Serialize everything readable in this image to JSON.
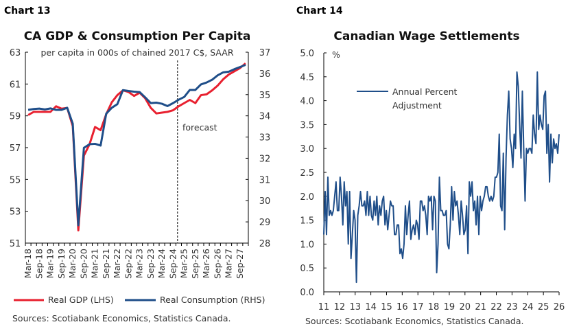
{
  "chart_data": [
    {
      "type": "line",
      "label": "Chart 13",
      "title": "CA GDP & Consumption Per Capita",
      "subtitle": "per capita in 000s of chained 2017 C$, SAAR",
      "annotation": "forecast",
      "forecast_start": "Dec-24",
      "x_tick_labels": [
        "Mar-18",
        "Sep-18",
        "Mar-19",
        "Sep-19",
        "Mar-20",
        "Sep-20",
        "Mar-21",
        "Sep-21",
        "Mar-22",
        "Sep-22",
        "Mar-23",
        "Sep-23",
        "Mar-24",
        "Sep-24",
        "Mar-25",
        "Sep-25",
        "Mar-26",
        "Sep-26",
        "Mar-27",
        "Sep-27"
      ],
      "x_start": "Mar-18",
      "frequency": "quarterly",
      "y_left": {
        "ylim": [
          51,
          63
        ],
        "ticks": [
          51,
          53,
          55,
          57,
          59,
          61,
          63
        ]
      },
      "y_right": {
        "ylim": [
          28,
          37
        ],
        "ticks": [
          28,
          29,
          30,
          31,
          32,
          33,
          34,
          35,
          36,
          37
        ]
      },
      "grid": false,
      "legend_placement": "bottom",
      "series": [
        {
          "name": "Real GDP (LHS)",
          "axis": "left",
          "color": "#e8202f",
          "values": [
            59.05,
            59.25,
            59.25,
            59.25,
            59.25,
            59.6,
            59.45,
            59.5,
            58.35,
            51.8,
            56.5,
            57.2,
            58.3,
            58.1,
            59.1,
            59.85,
            60.3,
            60.6,
            60.5,
            60.25,
            60.45,
            60.1,
            59.5,
            59.15,
            59.2,
            59.25,
            59.35,
            59.6,
            59.8,
            60.0,
            59.8,
            60.3,
            60.35,
            60.6,
            60.9,
            61.3,
            61.6,
            61.8,
            62.0,
            62.3
          ]
        },
        {
          "name": "Real Consumption (RHS)",
          "axis": "right",
          "color": "#1f4e89",
          "values": [
            34.28,
            34.32,
            34.34,
            34.3,
            34.35,
            34.28,
            34.28,
            34.38,
            33.63,
            28.84,
            32.49,
            32.66,
            32.68,
            32.6,
            34.1,
            34.38,
            34.55,
            35.21,
            35.17,
            35.14,
            35.12,
            34.87,
            34.6,
            34.62,
            34.57,
            34.46,
            34.6,
            34.76,
            34.89,
            35.22,
            35.22,
            35.48,
            35.57,
            35.7,
            35.91,
            36.05,
            36.08,
            36.2,
            36.3,
            36.4
          ]
        }
      ],
      "source": "Sources: Scotiabank Economics, Statistics Canada."
    },
    {
      "type": "line",
      "label": "Chart 14",
      "title": "Canadian Wage Settlements",
      "ylabel": "%",
      "ylim": [
        0,
        5
      ],
      "y_ticks": [
        "0.0",
        "0.5",
        "1.0",
        "1.5",
        "2.0",
        "2.5",
        "3.0",
        "3.5",
        "4.0",
        "4.5",
        "5.0"
      ],
      "x_tick_labels": [
        "11",
        "12",
        "13",
        "14",
        "15",
        "16",
        "17",
        "18",
        "19",
        "20",
        "21",
        "22",
        "23",
        "24",
        "25",
        "26"
      ],
      "frequency": "monthly",
      "grid": false,
      "legend_placement": "top-left",
      "series": [
        {
          "name": "Annual Percent Adjustment",
          "name_lines": [
            "Annual Percent",
            "Adjustment"
          ],
          "color": "#1f4e89",
          "values": [
            1.2,
            2.1,
            1.2,
            2.4,
            1.6,
            1.7,
            1.6,
            1.7,
            2.0,
            2.3,
            1.7,
            1.7,
            2.4,
            2.0,
            1.4,
            2.3,
            1.8,
            2.1,
            1.0,
            2.1,
            0.7,
            1.2,
            1.7,
            1.5,
            0.2,
            1.6,
            1.8,
            2.1,
            1.8,
            1.8,
            1.9,
            1.6,
            2.1,
            1.6,
            2.0,
            1.6,
            1.5,
            1.9,
            1.6,
            2.0,
            1.4,
            1.8,
            1.6,
            1.9,
            2.0,
            1.4,
            1.7,
            1.3,
            1.6,
            1.9,
            1.8,
            1.8,
            1.2,
            1.2,
            1.4,
            1.4,
            0.8,
            0.9,
            0.7,
            1.0,
            1.8,
            1.2,
            1.6,
            1.9,
            1.1,
            1.3,
            1.4,
            1.2,
            1.5,
            1.4,
            1.1,
            1.9,
            1.9,
            1.7,
            1.8,
            1.6,
            1.2,
            2.0,
            1.9,
            2.0,
            1.3,
            2.0,
            1.9,
            0.4,
            1.0,
            2.4,
            1.7,
            1.7,
            1.6,
            1.6,
            1.7,
            1.0,
            0.9,
            1.4,
            2.2,
            1.5,
            2.1,
            1.8,
            1.9,
            1.6,
            1.2,
            1.9,
            1.6,
            1.2,
            1.3,
            1.8,
            0.8,
            2.3,
            2.0,
            2.3,
            1.7,
            1.9,
            1.4,
            2.0,
            1.2,
            2.0,
            1.7,
            1.9,
            2.0,
            2.2,
            2.2,
            2.0,
            1.9,
            2.0,
            1.9,
            2.0,
            2.4,
            2.4,
            2.5,
            3.3,
            1.8,
            1.7,
            2.9,
            1.3,
            2.8,
            3.7,
            4.2,
            3.2,
            3.0,
            2.6,
            3.3,
            3.0,
            4.6,
            4.3,
            3.5,
            2.8,
            4.2,
            3.0,
            1.9,
            3.0,
            2.9,
            3.0,
            3.0,
            2.9,
            3.7,
            3.3,
            3.1,
            4.6,
            3.4,
            3.7,
            3.5,
            3.4,
            4.1,
            4.2,
            2.9,
            3.5,
            2.3,
            3.3,
            2.7,
            3.2,
            3.0,
            3.1,
            2.9,
            3.3
          ]
        }
      ],
      "source": "Sources: Scotiabank Economics, Statistics Canada."
    }
  ]
}
